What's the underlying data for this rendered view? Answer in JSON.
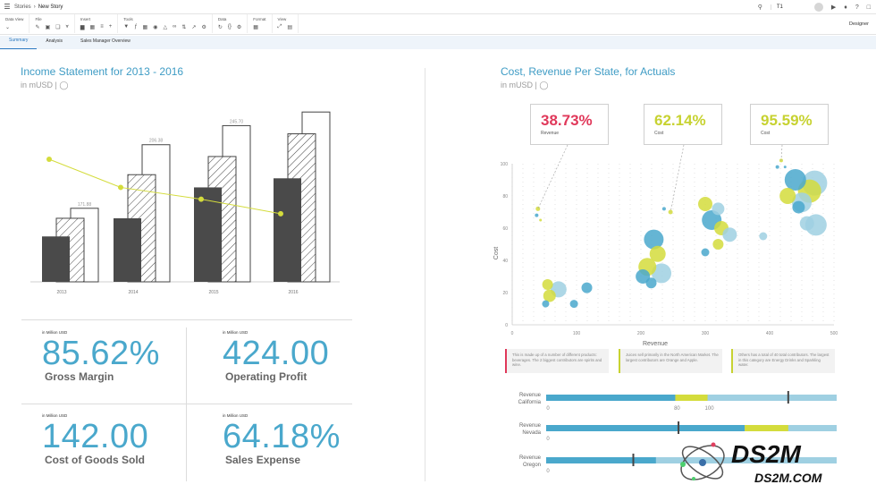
{
  "header": {
    "breadcrumb_root": "Stories",
    "breadcrumb_current": "New Story",
    "search_value": "T1"
  },
  "toolbar": {
    "groups": [
      {
        "label": "Data View"
      },
      {
        "label": "File"
      },
      {
        "label": "Insert"
      },
      {
        "label": "Tools"
      },
      {
        "label": "Data"
      },
      {
        "label": "Format"
      },
      {
        "label": "View"
      }
    ],
    "designer_label": "Designer"
  },
  "tabs": [
    {
      "label": "Summary",
      "active": true
    },
    {
      "label": "Analysis",
      "active": false
    },
    {
      "label": "Sales Manager Overview",
      "active": false
    }
  ],
  "left_widget": {
    "title": "Income Statement for 2013 - 2016",
    "subtitle": "in mUSD |"
  },
  "right_widget": {
    "title": "Cost, Revenue Per State, for Actuals",
    "subtitle": "in mUSD |"
  },
  "chart_data": [
    {
      "type": "bar",
      "title": "Income Statement for 2013 - 2016",
      "categories": [
        "2013",
        "2014",
        "2015",
        "2016"
      ],
      "series": [
        {
          "values": [
            50,
            70,
            104,
            114
          ],
          "color": "#4a4a4a"
        },
        {
          "values": [
            70,
            118,
            138,
            163
          ],
          "style": "hatched"
        },
        {
          "values": [
            81,
            151,
            172,
            187
          ],
          "style": "outline"
        }
      ],
      "line_series": {
        "values": [
          135,
          104,
          91,
          75
        ],
        "color": "#d4dc3c"
      },
      "data_labels": [
        {
          "category": "2013",
          "text": "171.88"
        },
        {
          "category": "2014",
          "text": "206.38"
        },
        {
          "category": "2015",
          "text": "245.70"
        }
      ],
      "ylim": [
        0,
        200
      ]
    },
    {
      "type": "scatter",
      "title": "Cost, Revenue Per State, for Actuals",
      "xlabel": "Revenue",
      "ylabel": "Cost",
      "xticks": [
        "0",
        "100",
        "200",
        "300",
        "400",
        "500"
      ],
      "yticks": [
        "0",
        "20",
        "40",
        "60",
        "80",
        "100"
      ],
      "xlim": [
        0,
        500
      ],
      "ylim": [
        0,
        100
      ],
      "colors": {
        "blue": "#4aa8cc",
        "light_blue": "#9fd0e2",
        "yellow": "#d4dc3c"
      },
      "points": [
        {
          "x": 40,
          "y": 72,
          "r": 2.5,
          "c": "yellow"
        },
        {
          "x": 38,
          "y": 68,
          "r": 2,
          "c": "blue"
        },
        {
          "x": 44,
          "y": 65,
          "r": 1.5,
          "c": "yellow"
        },
        {
          "x": 55,
          "y": 25,
          "r": 6,
          "c": "yellow"
        },
        {
          "x": 72,
          "y": 22,
          "r": 9,
          "c": "light_blue"
        },
        {
          "x": 58,
          "y": 18,
          "r": 7,
          "c": "yellow"
        },
        {
          "x": 52,
          "y": 13,
          "r": 4,
          "c": "blue"
        },
        {
          "x": 96,
          "y": 13,
          "r": 4.5,
          "c": "blue"
        },
        {
          "x": 116,
          "y": 23,
          "r": 6,
          "c": "blue"
        },
        {
          "x": 236,
          "y": 72,
          "r": 2,
          "c": "blue"
        },
        {
          "x": 246,
          "y": 70,
          "r": 2.5,
          "c": "yellow"
        },
        {
          "x": 220,
          "y": 53,
          "r": 11,
          "c": "blue"
        },
        {
          "x": 226,
          "y": 44,
          "r": 9,
          "c": "yellow"
        },
        {
          "x": 210,
          "y": 36,
          "r": 10,
          "c": "yellow"
        },
        {
          "x": 232,
          "y": 32,
          "r": 11,
          "c": "light_blue"
        },
        {
          "x": 203,
          "y": 30,
          "r": 8,
          "c": "blue"
        },
        {
          "x": 216,
          "y": 26,
          "r": 6,
          "c": "blue"
        },
        {
          "x": 300,
          "y": 75,
          "r": 8,
          "c": "yellow"
        },
        {
          "x": 320,
          "y": 72,
          "r": 7,
          "c": "light_blue"
        },
        {
          "x": 310,
          "y": 65,
          "r": 11,
          "c": "blue"
        },
        {
          "x": 325,
          "y": 60,
          "r": 8,
          "c": "yellow"
        },
        {
          "x": 338,
          "y": 56,
          "r": 8,
          "c": "light_blue"
        },
        {
          "x": 320,
          "y": 50,
          "r": 6,
          "c": "yellow"
        },
        {
          "x": 300,
          "y": 45,
          "r": 4.5,
          "c": "blue"
        },
        {
          "x": 390,
          "y": 55,
          "r": 4.5,
          "c": "light_blue"
        },
        {
          "x": 418,
          "y": 102,
          "r": 2,
          "c": "yellow"
        },
        {
          "x": 412,
          "y": 98,
          "r": 2,
          "c": "blue"
        },
        {
          "x": 424,
          "y": 98,
          "r": 1.5,
          "c": "blue"
        },
        {
          "x": 440,
          "y": 90,
          "r": 12,
          "c": "blue"
        },
        {
          "x": 470,
          "y": 88,
          "r": 14,
          "c": "light_blue"
        },
        {
          "x": 462,
          "y": 83,
          "r": 13,
          "c": "yellow"
        },
        {
          "x": 428,
          "y": 80,
          "r": 9,
          "c": "yellow"
        },
        {
          "x": 450,
          "y": 76,
          "r": 11,
          "c": "light_blue"
        },
        {
          "x": 445,
          "y": 73,
          "r": 7,
          "c": "blue"
        },
        {
          "x": 472,
          "y": 62,
          "r": 12,
          "c": "light_blue"
        },
        {
          "x": 458,
          "y": 63,
          "r": 8,
          "c": "light_blue"
        }
      ]
    },
    {
      "type": "bar",
      "subtype": "bullet",
      "categories": [
        "Revenue California",
        "Revenue Nevada",
        "Revenue Oregon"
      ],
      "axis_labels": [
        {
          "row": "Revenue California",
          "text": "0",
          "value": 0
        },
        {
          "row": "Revenue California",
          "text": "80",
          "value": 80
        },
        {
          "row": "Revenue California",
          "text": "100",
          "value": 100
        },
        {
          "row": "Revenue Nevada",
          "text": "0",
          "value": 0
        },
        {
          "row": "Revenue Oregon",
          "text": "0",
          "value": 0
        }
      ],
      "rows": [
        {
          "label_line1": "Revenue",
          "label_line2": "California",
          "actual": 80,
          "band": [
            80,
            100
          ],
          "max": 180,
          "target": 150
        },
        {
          "label_line1": "Revenue",
          "label_line2": "Nevada",
          "actual": 123,
          "band": [
            123,
            150
          ],
          "max": 180,
          "target": 82
        },
        {
          "label_line1": "Revenue",
          "label_line2": "Oregon",
          "actual": 68,
          "band": null,
          "max": 180,
          "target": 54
        }
      ]
    }
  ],
  "callouts": [
    {
      "value": "38.73%",
      "label": "Revenue",
      "color": "#e0385a"
    },
    {
      "value": "62.14%",
      "label": "Cost",
      "color": "#c7d231"
    },
    {
      "value": "95.59%",
      "label": "Cost",
      "color": "#c7d231"
    }
  ],
  "notes": [
    {
      "text": "This is made up of a number of different products: beverages. The 2 biggest contributors are spirits and wine.",
      "color": "#e0385a"
    },
    {
      "text": "Juices sell primarily in the North American Market. The largest contributors are Orange and Apple.",
      "color": "#c7d231"
    },
    {
      "text": "Others has a total of 40 total contributors. The largest in this category are Energy Drinks and Sparkling water.",
      "color": "#c7d231"
    }
  ],
  "kpis": [
    {
      "unit": "in Million USD",
      "value": "85.62%",
      "label": "Gross Margin"
    },
    {
      "unit": "in Million USD",
      "value": "424.00",
      "label": "Operating Profit"
    },
    {
      "unit": "in Million USD",
      "value": "142.00",
      "label": "Cost of Goods Sold"
    },
    {
      "unit": "in Million USD",
      "value": "64.18%",
      "label": "Sales Expense"
    }
  ],
  "watermark": {
    "logo_text": "DS2M",
    "url_text": "DS2M.COM"
  }
}
